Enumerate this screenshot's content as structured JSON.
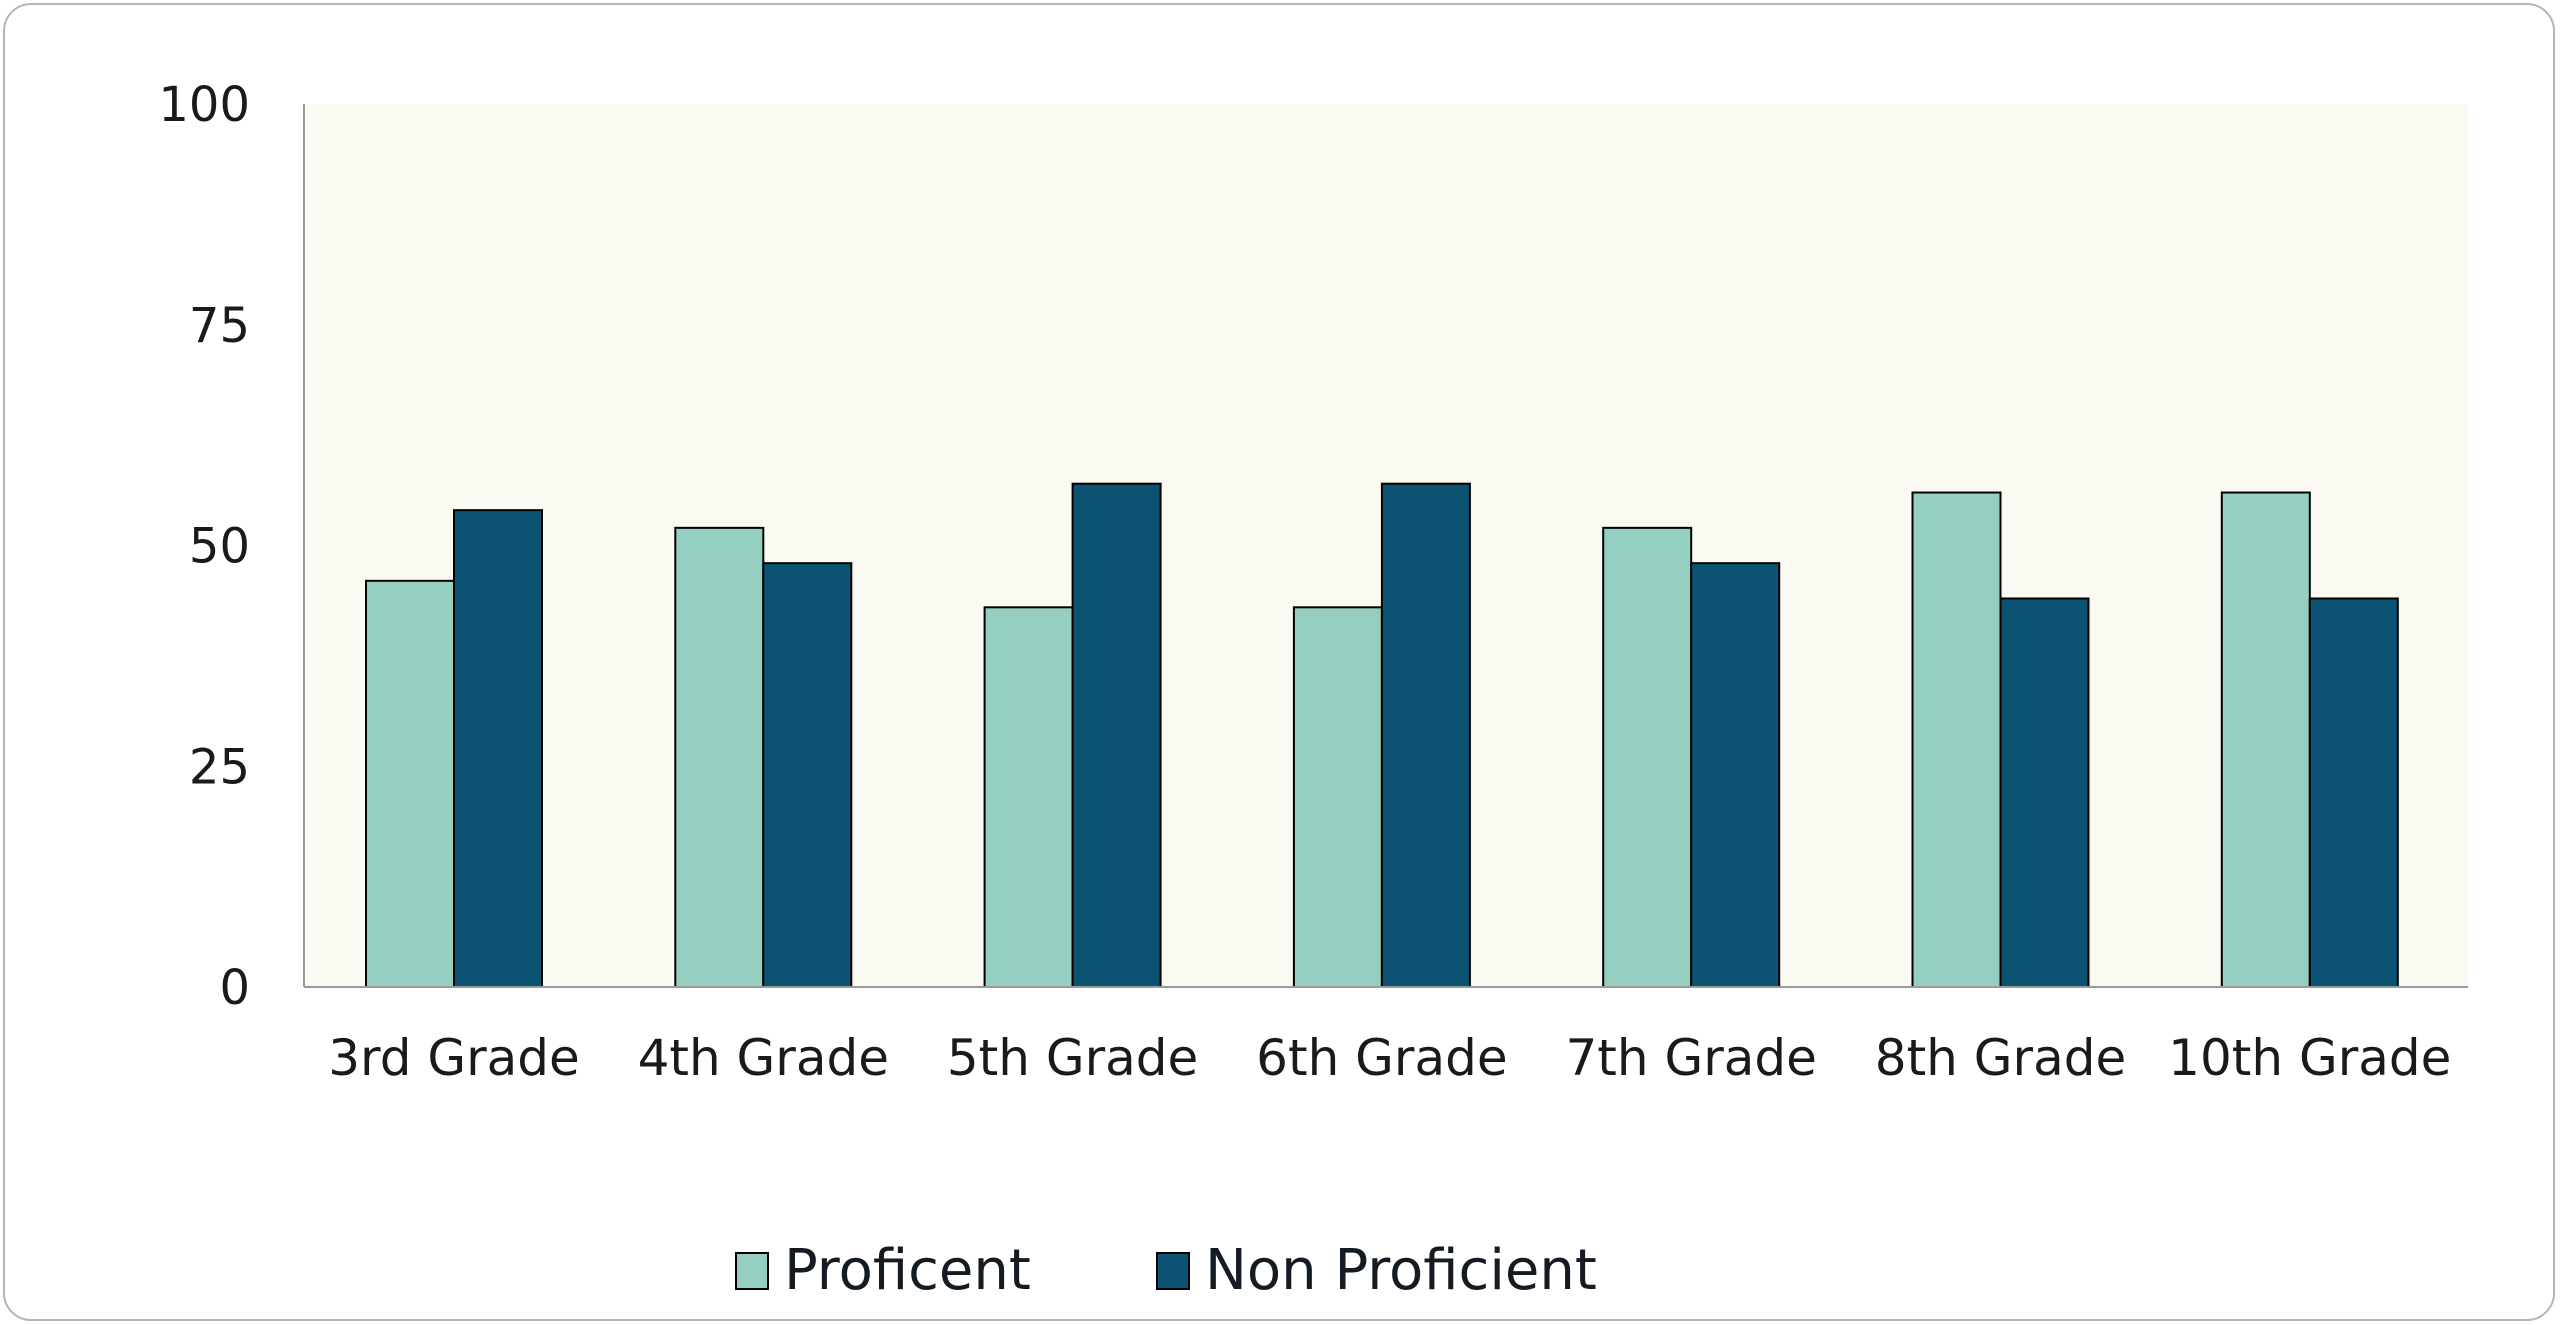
{
  "chart_data": {
    "type": "bar",
    "title": "",
    "xlabel": "",
    "ylabel": "",
    "ylim": [
      0,
      100
    ],
    "yticks": [
      0,
      25,
      50,
      75,
      100
    ],
    "categories": [
      "3rd Grade",
      "4th Grade",
      "5th Grade",
      "6th Grade",
      "7th Grade",
      "8th Grade",
      "10th Grade"
    ],
    "series": [
      {
        "name": "Proficent",
        "color": "#95cfc1",
        "values": [
          46,
          52,
          43,
          43,
          52,
          56,
          56
        ]
      },
      {
        "name": "Non Proficient",
        "color": "#0c5272",
        "values": [
          54,
          48,
          57,
          57,
          48,
          44,
          44
        ]
      }
    ],
    "legend_position": "bottom",
    "plot_background": "#fbfaf2"
  }
}
